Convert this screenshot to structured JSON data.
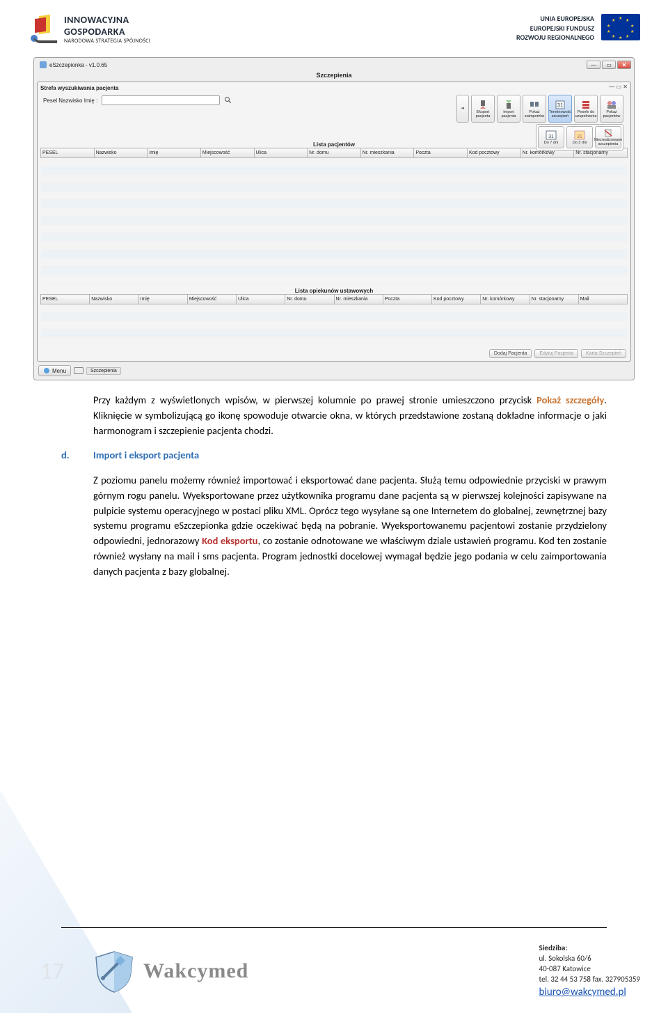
{
  "header": {
    "left": {
      "line1": "INNOWACYJNA",
      "line2": "GOSPODARKA",
      "line3": "NARODOWA STRATEGIA SPÓJNOŚCI"
    },
    "right": {
      "line1": "UNIA EUROPEJSKA",
      "line2": "EUROPEJSKI FUNDUSZ",
      "line3": "ROZWOJU REGIONALNEGO"
    }
  },
  "screenshot": {
    "title": "eSzczepionka - v1.0.65",
    "subtitle": "Szczepienia",
    "search_zone_label": "Strefa wyszukiwania pacjenta",
    "search_label": "Pesel Nazwisko Imię :",
    "list_title": "Lista pacjentów",
    "columns1": [
      "PESEL",
      "Nazwisko",
      "Imię",
      "Miejscowość",
      "Ulica",
      "Nr. domu",
      "Nr. mieszkania",
      "Poczta",
      "Kod pocztowy",
      "Nr. komórkowy",
      "Nr. stacjonarny"
    ],
    "toolbar": [
      {
        "label": "Eksport pacjenta",
        "name": "export-patient"
      },
      {
        "label": "Import pacjenta",
        "name": "import-patient"
      },
      {
        "label": "Pokaż zaimportów",
        "name": "show-imports"
      },
      {
        "label": "Terminowość szczepień",
        "name": "terminowosc",
        "selected": true
      },
      {
        "label": "Pesele do uzupełnienia",
        "name": "pesele-uzup"
      },
      {
        "label": "Pokaż pacjentów",
        "name": "show-patients"
      }
    ],
    "submenu": [
      {
        "label": "Do 7 dni",
        "name": "do-7-dni"
      },
      {
        "label": "Do 3 dni",
        "name": "do-3-dni"
      },
      {
        "label": "Niezrealizowane szczepienia",
        "name": "niezreal"
      }
    ],
    "list2_title": "Lista opiekunów ustawowych",
    "columns2": [
      "PESEL",
      "Nazwisko",
      "Imię",
      "Miejscowość",
      "Ulica",
      "Nr. domu",
      "Nr. mieszkania",
      "Poczta",
      "Kod pocztowy",
      "Nr. komórkowy",
      "Nr. stacjonarny",
      "Mail"
    ],
    "buttons": {
      "add": "Dodaj Pacjenta",
      "edit": "Edytuj Pacjenta",
      "card": "Karta Szczepień"
    },
    "menu_btn": "Menu",
    "tab_chip": "Szczepienia"
  },
  "body": {
    "p1_a": "Przy każdym z wyświetlonych wpisów, w pierwszej kolumnie po prawej stronie umieszczono przycisk ",
    "p1_orange": "Pokaż szczegóły",
    "p1_b": ". Kliknięcie w symbolizującą go ikonę spowoduje otwarcie okna, w których przedstawione zostaną dokładne informacje o jaki harmonogram i szczepienie pacjenta chodzi.",
    "d_label": "d.",
    "d_head": "Import i eksport pacjenta",
    "p2_a": "Z poziomu panelu możemy również importować i eksportować dane pacjenta. Służą temu odpowiednie przyciski w prawym górnym rogu panelu. Wyeksportowane przez użytkownika programu dane pacjenta są w pierwszej kolejności zapisywane na pulpicie systemu operacyjnego w postaci pliku XML. Oprócz tego wysyłane są one Internetem do globalnej, zewnętrznej bazy systemu programu eSzczepionka gdzie oczekiwać będą na pobranie. Wyeksportowanemu pacjentowi zostanie przydzielony odpowiedni, jednorazowy ",
    "p2_red": "Kod eksportu",
    "p2_b": ", co zostanie odnotowane we właściwym dziale ustawień programu. Kod ten zostanie również wysłany na mail i sms pacjenta. Program jednostki docelowej wymagał będzie jego podania w celu zaimportowania danych pacjenta z bazy globalnej."
  },
  "footer": {
    "page_num": "17",
    "brand": "Wakcymed",
    "addr_head": "Siedziba:",
    "addr_l1": "ul. Sokolska 60/6",
    "addr_l2": "40-087 Katowice",
    "addr_l3": "tel. 32 44 53 758 fax. 327905359",
    "email": "biuro@wakcymed.pl"
  },
  "colors": {
    "orange": "#c77433",
    "blue": "#2f6fb5",
    "red": "#b53230",
    "grid_alt": "#edf2f7",
    "eu_blue": "#003399",
    "eu_gold": "#f7ce3c"
  }
}
